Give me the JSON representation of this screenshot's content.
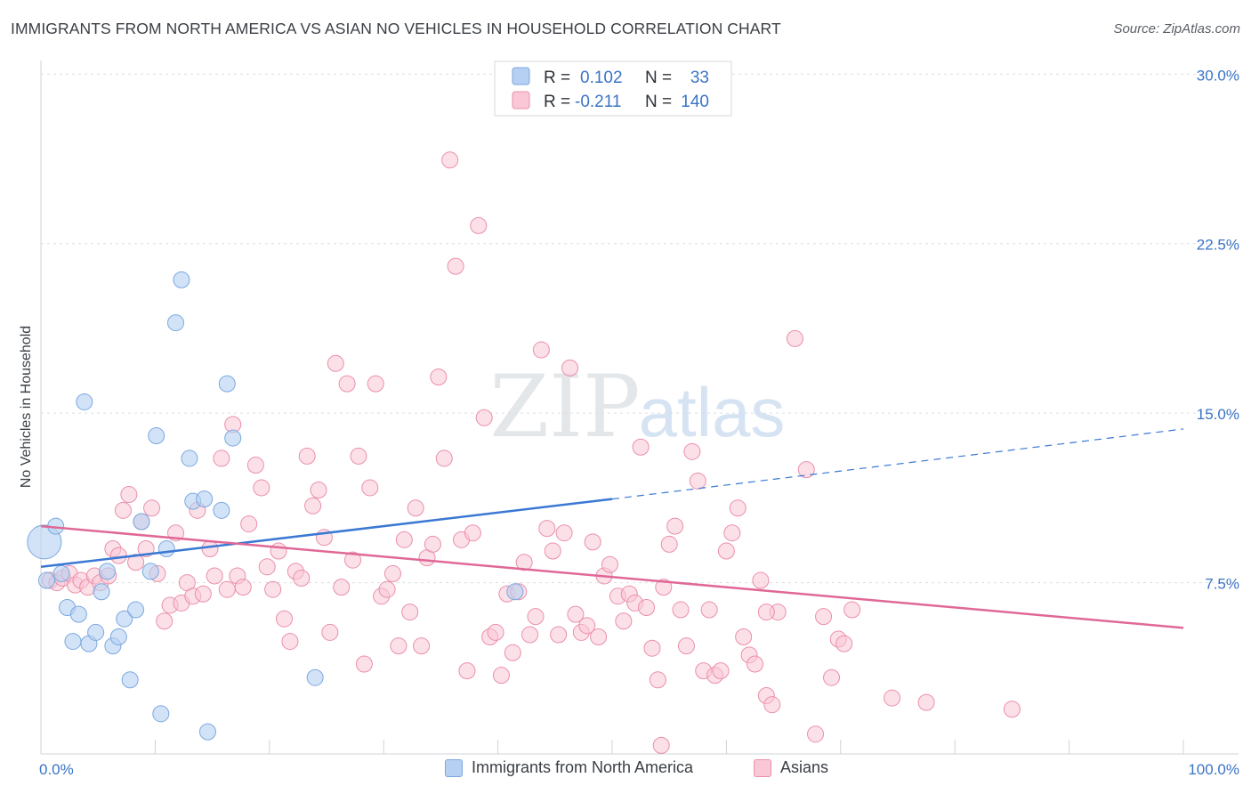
{
  "title": "IMMIGRANTS FROM NORTH AMERICA VS ASIAN NO VEHICLES IN HOUSEHOLD CORRELATION CHART",
  "source": "Source: ZipAtlas.com",
  "watermark": {
    "zip": "ZIP",
    "atlas": "atlas"
  },
  "colors": {
    "blue_fill": "#b5d0f2",
    "blue_stroke": "#7aa8e0",
    "blue_line": "#3a78d4",
    "pink_fill": "#f9c7d6",
    "pink_stroke": "#ea8fab",
    "pink_line": "#e06897",
    "axis_text": "#3a74c6",
    "grid": "#d9dde3"
  },
  "legend": {
    "rows": [
      {
        "r_label": "R =",
        "r_value": "0.102",
        "n_label": "N =",
        "n_value": "33"
      },
      {
        "r_label": "R =",
        "r_value": "-0.211",
        "n_label": "N =",
        "n_value": "140"
      }
    ]
  },
  "chart_data": {
    "type": "scatter",
    "ylabel": "No Vehicles in Household",
    "xlim": [
      0,
      100
    ],
    "ylim": [
      0,
      30.5
    ],
    "y_ticks": [
      7.5,
      15.0,
      22.5,
      30.0
    ],
    "y_tick_labels": [
      "7.5%",
      "15.0%",
      "22.5%",
      "30.0%"
    ],
    "x_tick_labels": [
      "0.0%",
      "100.0%"
    ],
    "legend_position": "top-center",
    "series": [
      {
        "name": "Immigrants from North America",
        "trend": {
          "x0": 0,
          "y0": 8.2,
          "x1": 50,
          "y1": 11.2,
          "dashed_to_x": 100,
          "dashed_to_y": 14.3
        },
        "points": [
          [
            0.3,
            9.3
          ],
          [
            0.5,
            7.6
          ],
          [
            1.3,
            10.0
          ],
          [
            1.8,
            7.9
          ],
          [
            2.3,
            6.4
          ],
          [
            2.8,
            4.9
          ],
          [
            3.3,
            6.1
          ],
          [
            3.8,
            15.5
          ],
          [
            4.2,
            4.8
          ],
          [
            4.8,
            5.3
          ],
          [
            5.3,
            7.1
          ],
          [
            5.8,
            8.0
          ],
          [
            6.3,
            4.7
          ],
          [
            6.8,
            5.1
          ],
          [
            7.3,
            5.9
          ],
          [
            7.8,
            3.2
          ],
          [
            8.3,
            6.3
          ],
          [
            8.8,
            10.2
          ],
          [
            9.6,
            8.0
          ],
          [
            10.1,
            14.0
          ],
          [
            10.5,
            1.7
          ],
          [
            11.0,
            9.0
          ],
          [
            11.8,
            19.0
          ],
          [
            12.3,
            20.9
          ],
          [
            13.0,
            13.0
          ],
          [
            13.3,
            11.1
          ],
          [
            14.3,
            11.2
          ],
          [
            14.6,
            0.9
          ],
          [
            15.8,
            10.7
          ],
          [
            16.3,
            16.3
          ],
          [
            16.8,
            13.9
          ],
          [
            24.0,
            3.3
          ],
          [
            41.5,
            7.1
          ]
        ]
      },
      {
        "name": "Asians",
        "trend": {
          "x0": 0,
          "y0": 10.0,
          "x1": 100,
          "y1": 5.5
        },
        "points": [
          [
            0.8,
            7.6
          ],
          [
            1.4,
            7.5
          ],
          [
            1.9,
            7.7
          ],
          [
            2.5,
            7.9
          ],
          [
            3.0,
            7.4
          ],
          [
            3.5,
            7.6
          ],
          [
            4.1,
            7.3
          ],
          [
            4.7,
            7.8
          ],
          [
            5.2,
            7.5
          ],
          [
            5.9,
            7.8
          ],
          [
            6.3,
            9.0
          ],
          [
            6.8,
            8.7
          ],
          [
            7.2,
            10.7
          ],
          [
            7.7,
            11.4
          ],
          [
            8.3,
            8.4
          ],
          [
            8.8,
            10.2
          ],
          [
            9.2,
            9.0
          ],
          [
            9.7,
            10.8
          ],
          [
            10.2,
            7.9
          ],
          [
            10.8,
            5.8
          ],
          [
            11.3,
            6.5
          ],
          [
            11.8,
            9.7
          ],
          [
            12.3,
            6.6
          ],
          [
            12.8,
            7.5
          ],
          [
            13.3,
            6.9
          ],
          [
            13.7,
            10.7
          ],
          [
            14.2,
            7.0
          ],
          [
            14.8,
            9.0
          ],
          [
            15.2,
            7.8
          ],
          [
            15.8,
            13.0
          ],
          [
            16.3,
            7.2
          ],
          [
            16.8,
            14.5
          ],
          [
            17.2,
            7.8
          ],
          [
            17.7,
            7.3
          ],
          [
            18.2,
            10.1
          ],
          [
            18.8,
            12.7
          ],
          [
            19.3,
            11.7
          ],
          [
            19.8,
            8.2
          ],
          [
            20.3,
            7.2
          ],
          [
            20.8,
            8.9
          ],
          [
            21.3,
            5.9
          ],
          [
            21.8,
            4.9
          ],
          [
            22.3,
            8.0
          ],
          [
            22.8,
            7.7
          ],
          [
            23.3,
            13.1
          ],
          [
            23.8,
            10.9
          ],
          [
            24.3,
            11.6
          ],
          [
            24.8,
            9.5
          ],
          [
            25.3,
            5.3
          ],
          [
            25.8,
            17.2
          ],
          [
            26.3,
            7.3
          ],
          [
            26.8,
            16.3
          ],
          [
            27.3,
            8.5
          ],
          [
            27.8,
            13.1
          ],
          [
            28.3,
            3.9
          ],
          [
            28.8,
            11.7
          ],
          [
            29.3,
            16.3
          ],
          [
            29.8,
            6.9
          ],
          [
            30.3,
            7.2
          ],
          [
            30.8,
            7.9
          ],
          [
            31.3,
            4.7
          ],
          [
            31.8,
            9.4
          ],
          [
            32.3,
            6.2
          ],
          [
            32.8,
            10.8
          ],
          [
            33.3,
            4.7
          ],
          [
            33.8,
            8.6
          ],
          [
            34.3,
            9.2
          ],
          [
            34.8,
            16.6
          ],
          [
            35.3,
            13.0
          ],
          [
            35.8,
            26.2
          ],
          [
            36.3,
            21.5
          ],
          [
            36.8,
            9.4
          ],
          [
            37.3,
            3.6
          ],
          [
            37.8,
            9.7
          ],
          [
            38.3,
            23.3
          ],
          [
            38.8,
            14.8
          ],
          [
            39.3,
            5.1
          ],
          [
            39.8,
            5.3
          ],
          [
            40.3,
            3.4
          ],
          [
            40.8,
            7.0
          ],
          [
            41.3,
            4.4
          ],
          [
            41.8,
            7.1
          ],
          [
            42.3,
            8.4
          ],
          [
            42.8,
            5.2
          ],
          [
            43.3,
            6.0
          ],
          [
            43.8,
            17.8
          ],
          [
            44.3,
            9.9
          ],
          [
            44.8,
            8.9
          ],
          [
            45.3,
            5.2
          ],
          [
            45.8,
            9.7
          ],
          [
            46.3,
            17.0
          ],
          [
            46.8,
            6.1
          ],
          [
            47.3,
            5.3
          ],
          [
            47.8,
            5.6
          ],
          [
            48.3,
            9.3
          ],
          [
            48.8,
            5.1
          ],
          [
            49.3,
            7.8
          ],
          [
            49.8,
            8.3
          ],
          [
            50.5,
            6.9
          ],
          [
            51.0,
            5.8
          ],
          [
            51.5,
            7.0
          ],
          [
            52.0,
            6.6
          ],
          [
            52.5,
            13.5
          ],
          [
            53.0,
            6.4
          ],
          [
            53.5,
            4.6
          ],
          [
            54.0,
            3.2
          ],
          [
            54.5,
            7.3
          ],
          [
            55.0,
            9.2
          ],
          [
            55.5,
            10.0
          ],
          [
            56.0,
            6.3
          ],
          [
            56.5,
            4.7
          ],
          [
            57.0,
            13.3
          ],
          [
            57.5,
            12.0
          ],
          [
            58.0,
            3.6
          ],
          [
            58.5,
            6.3
          ],
          [
            59.0,
            3.4
          ],
          [
            59.5,
            3.6
          ],
          [
            60.0,
            8.9
          ],
          [
            60.5,
            9.7
          ],
          [
            61.0,
            10.8
          ],
          [
            61.5,
            5.1
          ],
          [
            62.0,
            4.3
          ],
          [
            62.5,
            3.9
          ],
          [
            63.0,
            7.6
          ],
          [
            63.5,
            2.5
          ],
          [
            64.0,
            2.1
          ],
          [
            64.5,
            6.2
          ],
          [
            66.0,
            18.3
          ],
          [
            67.0,
            12.5
          ],
          [
            67.8,
            0.8
          ],
          [
            68.5,
            6.0
          ],
          [
            69.2,
            3.3
          ],
          [
            69.8,
            5.0
          ],
          [
            70.3,
            4.8
          ],
          [
            71.0,
            6.3
          ],
          [
            74.5,
            2.4
          ],
          [
            77.5,
            2.2
          ],
          [
            85.0,
            1.9
          ],
          [
            54.3,
            0.3
          ],
          [
            63.5,
            6.2
          ]
        ]
      }
    ]
  },
  "legend_bottom": [
    "Immigrants from North America",
    "Asians"
  ]
}
